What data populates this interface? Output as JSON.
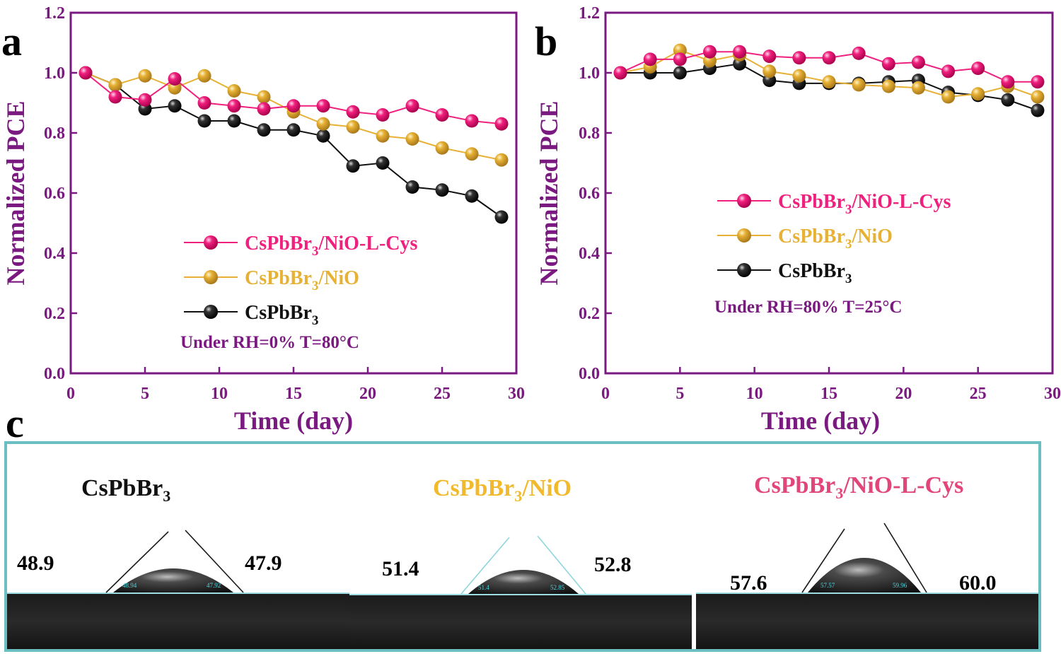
{
  "panels": {
    "a": {
      "label": "a",
      "condition": "Under  RH=0%  T=80°C"
    },
    "b": {
      "label": "b",
      "condition": "Under  RH=80%  T=25°C"
    },
    "c": {
      "label": "c"
    }
  },
  "colors": {
    "axis": "#7a1a80",
    "pink": "#f0207e",
    "gold": "#e6b134",
    "black": "#111111",
    "frame": "#6bbfc0"
  },
  "chart_data": [
    {
      "type": "line",
      "panel": "a",
      "xlabel": "Time (day)",
      "ylabel": "Normalized PCE",
      "xlim": [
        0,
        30
      ],
      "ylim": [
        0.0,
        1.2
      ],
      "xticks": [
        "0",
        "5",
        "10",
        "15",
        "20",
        "25",
        "30"
      ],
      "yticks": [
        "0.0",
        "0.2",
        "0.4",
        "0.6",
        "0.8",
        "1.0",
        "1.2"
      ],
      "x": [
        1,
        3,
        5,
        7,
        9,
        11,
        13,
        15,
        17,
        19,
        21,
        23,
        25,
        27,
        29
      ],
      "series": [
        {
          "name_main": "CsPbBr",
          "name_sub": "3",
          "name_suffix": "/NiO-L-Cys",
          "color": "#f0207e",
          "values": [
            1.0,
            0.92,
            0.91,
            0.98,
            0.9,
            0.89,
            0.88,
            0.89,
            0.89,
            0.87,
            0.86,
            0.89,
            0.86,
            0.84,
            0.83
          ]
        },
        {
          "name_main": "CsPbBr",
          "name_sub": "3",
          "name_suffix": "/NiO",
          "color": "#e6b134",
          "values": [
            1.0,
            0.96,
            0.99,
            0.95,
            0.99,
            0.94,
            0.92,
            0.87,
            0.83,
            0.82,
            0.79,
            0.78,
            0.75,
            0.73,
            0.71
          ]
        },
        {
          "name_main": "CsPbBr",
          "name_sub": "3",
          "name_suffix": "",
          "color": "#111111",
          "values": [
            1.0,
            0.96,
            0.88,
            0.89,
            0.84,
            0.84,
            0.81,
            0.81,
            0.79,
            0.69,
            0.7,
            0.62,
            0.61,
            0.59,
            0.52
          ]
        }
      ]
    },
    {
      "type": "line",
      "panel": "b",
      "xlabel": "Time (day)",
      "ylabel": "Normalized PCE",
      "xlim": [
        0,
        30
      ],
      "ylim": [
        0.0,
        1.2
      ],
      "xticks": [
        "0",
        "5",
        "10",
        "15",
        "20",
        "25",
        "30"
      ],
      "yticks": [
        "0.0",
        "0.2",
        "0.4",
        "0.6",
        "0.8",
        "1.0",
        "1.2"
      ],
      "x": [
        1,
        3,
        5,
        7,
        9,
        11,
        13,
        15,
        17,
        19,
        21,
        23,
        25,
        27,
        29
      ],
      "series": [
        {
          "name_main": "CsPbBr",
          "name_sub": "3",
          "name_suffix": "/NiO-L-Cys",
          "color": "#f0207e",
          "values": [
            1.0,
            1.045,
            1.045,
            1.07,
            1.07,
            1.055,
            1.05,
            1.05,
            1.065,
            1.03,
            1.035,
            1.005,
            1.015,
            0.97,
            0.97
          ]
        },
        {
          "name_main": "CsPbBr",
          "name_sub": "3",
          "name_suffix": "/NiO",
          "color": "#e6b134",
          "values": [
            1.0,
            1.02,
            1.075,
            1.04,
            1.06,
            1.005,
            0.99,
            0.97,
            0.96,
            0.955,
            0.95,
            0.92,
            0.93,
            0.955,
            0.92
          ]
        },
        {
          "name_main": "CsPbBr",
          "name_sub": "3",
          "name_suffix": "",
          "color": "#111111",
          "values": [
            1.0,
            1.0,
            1.0,
            1.015,
            1.03,
            0.975,
            0.965,
            0.965,
            0.965,
            0.97,
            0.975,
            0.935,
            0.925,
            0.91,
            0.875
          ]
        }
      ]
    }
  ],
  "contact_angle": [
    {
      "title_main": "CsPbBr",
      "title_sub": "3",
      "title_suffix": "",
      "color": "#111111",
      "left_angle": "48.9",
      "right_angle": "47.9",
      "left_meas": "48.94",
      "right_meas": "47.92"
    },
    {
      "title_main": "CsPbBr",
      "title_sub": "3",
      "title_suffix": "/NiO",
      "color": "#f1b92c",
      "left_angle": "51.4",
      "right_angle": "52.8",
      "left_meas": "51.4",
      "right_meas": "52.85"
    },
    {
      "title_main": "CsPbBr",
      "title_sub": "3",
      "title_suffix": "/NiO-L-Cys",
      "color": "#e2457a",
      "left_angle": "57.6",
      "right_angle": "60.0",
      "left_meas": "57.57",
      "right_meas": "59.96"
    }
  ]
}
